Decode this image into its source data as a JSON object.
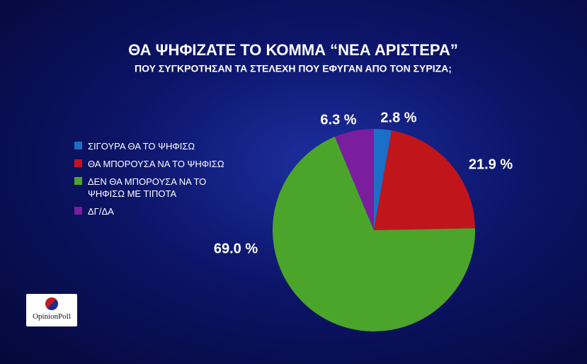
{
  "chart_data": {
    "type": "pie",
    "title": "ΘΑ ΨΗΦΙΖΑΤΕ ΤΟ ΚΟΜΜΑ “ΝΕΑ ΑΡΙΣΤΕΡΑ”",
    "subtitle": "ΠΟΥ ΣΥΓΚΡΟΤΗΣΑΝ ΤΑ ΣΤΕΛΕΧΗ ΠΟΥ ΕΦΥΓΑΝ ΑΠΟ ΤΟΝ ΣΥΡΙΖΑ;",
    "categories": [
      "ΣΙΓΟΥΡΑ ΘΑ ΤΟ ΨΗΦΙΣΩ",
      "ΘΑ ΜΠΟΡΟΥΣΑ ΝΑ ΤΟ ΨΗΦΙΣΩ",
      "ΔΕΝ ΘΑ ΜΠΟΡΟΥΣΑ ΝΑ ΤΟ ΨΗΦΙΣΩ ΜΕ ΤΙΠΟΤΑ",
      "ΔΓ/ΔΑ"
    ],
    "values": [
      2.8,
      21.9,
      69.0,
      6.3
    ],
    "value_labels": [
      "2.8 %",
      "21.9 %",
      "69.0 %",
      "6.3 %"
    ],
    "colors": [
      "#1b6fc6",
      "#c1151c",
      "#4ba52b",
      "#7a1d9e"
    ],
    "legend": "left"
  },
  "logo": {
    "text": "OpinionPoll"
  }
}
